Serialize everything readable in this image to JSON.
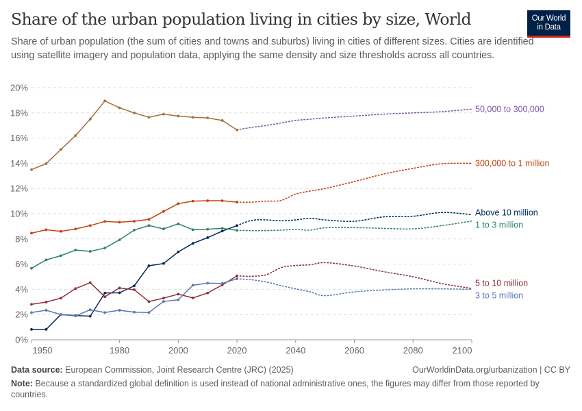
{
  "header": {
    "title": "Share of the urban population living in cities by size, World",
    "subtitle": "Share of urban population (the sum of cities and towns and suburbs) living in cities of different sizes. Cities are identified using satellite imagery and population data, applying the same density and size thresholds across all countries.",
    "logo_line1": "Our World",
    "logo_line2": "in Data"
  },
  "footer": {
    "source_label": "Data source:",
    "source_text": "European Commission, Joint Research Centre (JRC) (2025)",
    "url": "OurWorldinData.org/urbanization | CC BY",
    "note_label": "Note:",
    "note_text": "Because a standardized global definition is used instead of national administrative ones, the figures may differ from those reported by countries."
  },
  "chart_data": {
    "type": "line",
    "title": "Share of the urban population living in cities by size, World",
    "xlim": [
      1950,
      2100
    ],
    "ylim": [
      0,
      20
    ],
    "y_ticks": [
      "0%",
      "2%",
      "4%",
      "6%",
      "8%",
      "10%",
      "12%",
      "14%",
      "16%",
      "18%",
      "20%"
    ],
    "x_ticks": [
      "1950",
      "1980",
      "2000",
      "2020",
      "2040",
      "2060",
      "2080",
      "2100"
    ],
    "grid": "horizontal dashed",
    "legend": "right (inline labels)",
    "historical_style": "solid with markers",
    "projection_style": "dotted",
    "historical_x": [
      1950,
      1955,
      1960,
      1965,
      1970,
      1975,
      1980,
      1985,
      1990,
      1995,
      2000,
      2005,
      2010,
      2015,
      2020
    ],
    "projection_x": [
      2020,
      2025,
      2030,
      2035,
      2040,
      2045,
      2050,
      2060,
      2070,
      2080,
      2090,
      2100
    ],
    "series": [
      {
        "name": "50,000 to 300,000",
        "color": "#7d55a8",
        "historical_color": "#a2703a",
        "historical": [
          13.5,
          13.97,
          15.1,
          16.2,
          17.5,
          18.95,
          18.4,
          18.0,
          17.65,
          17.9,
          17.75,
          17.65,
          17.6,
          17.4,
          16.65
        ],
        "projection": [
          16.65,
          16.85,
          17.0,
          17.2,
          17.4,
          17.5,
          17.6,
          17.75,
          17.9,
          18.0,
          18.1,
          18.3
        ]
      },
      {
        "name": "300,000 to 1 million",
        "color": "#c4420e",
        "historical": [
          8.46,
          8.73,
          8.6,
          8.79,
          9.06,
          9.39,
          9.33,
          9.4,
          9.55,
          10.18,
          10.8,
          11.0,
          11.03,
          11.03,
          10.92
        ],
        "projection": [
          10.92,
          10.92,
          11.0,
          11.05,
          11.56,
          11.8,
          12.0,
          12.55,
          13.15,
          13.6,
          13.97,
          14.0
        ]
      },
      {
        "name": "Above 10 million",
        "color": "#00295b",
        "historical": [
          0.82,
          0.82,
          2.0,
          1.92,
          1.87,
          3.71,
          3.73,
          4.28,
          5.87,
          6.05,
          6.97,
          7.65,
          8.1,
          8.62,
          9.06
        ],
        "projection": [
          9.06,
          9.47,
          9.51,
          9.44,
          9.51,
          9.64,
          9.51,
          9.4,
          9.75,
          9.8,
          10.1,
          9.93
        ]
      },
      {
        "name": "1 to 3 million",
        "color": "#2c8465",
        "historical": [
          5.67,
          6.34,
          6.67,
          7.12,
          7.01,
          7.28,
          7.93,
          8.7,
          9.06,
          8.8,
          9.2,
          8.73,
          8.77,
          8.84,
          8.68
        ],
        "projection": [
          8.68,
          8.66,
          8.66,
          8.7,
          8.75,
          8.7,
          8.88,
          8.9,
          8.84,
          8.8,
          9.06,
          9.42
        ]
      },
      {
        "name": "5 to 10 million",
        "color": "#8e2f3b",
        "historical": [
          2.81,
          2.99,
          3.3,
          4.06,
          4.53,
          3.41,
          4.11,
          3.97,
          3.03,
          3.3,
          3.62,
          3.32,
          3.71,
          4.35,
          5.07
        ],
        "projection": [
          5.07,
          5.04,
          5.16,
          5.72,
          5.89,
          5.95,
          6.12,
          5.85,
          5.4,
          5.0,
          4.45,
          4.07
        ]
      },
      {
        "name": "3 to 5 million",
        "color": "#5a78b0",
        "historical": [
          2.16,
          2.34,
          2.0,
          1.89,
          2.38,
          2.16,
          2.34,
          2.19,
          2.16,
          3.04,
          3.17,
          4.33,
          4.49,
          4.47,
          4.84
        ],
        "projection": [
          4.84,
          4.76,
          4.58,
          4.3,
          4.04,
          3.8,
          3.5,
          3.8,
          3.95,
          4.04,
          4.04,
          4.0
        ]
      }
    ]
  }
}
